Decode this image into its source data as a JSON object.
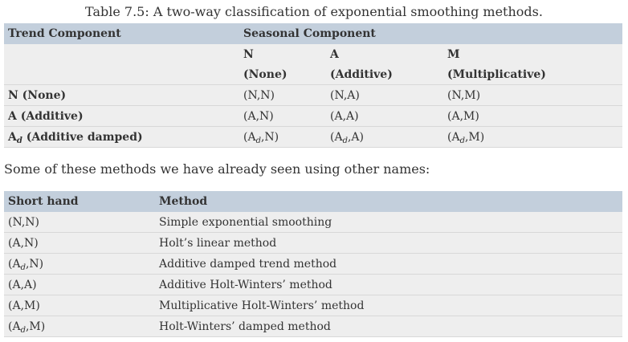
{
  "caption": "Table 7.5: A two-way classification of exponential smoothing methods.",
  "table1": {
    "header": {
      "trend": "Trend Component",
      "seasonal": "Seasonal Component"
    },
    "seasonal_codes": [
      "N",
      "A",
      "M"
    ],
    "seasonal_names": [
      "(None)",
      "(Additive)",
      "(Multiplicative)"
    ],
    "rows": [
      {
        "trend_main": "N (None)",
        "trend_sub": "",
        "trend_rest": "",
        "cells": [
          {
            "pre": "(N,N)",
            "sub": "",
            "post": ""
          },
          {
            "pre": "(N,A)",
            "sub": "",
            "post": ""
          },
          {
            "pre": "(N,M)",
            "sub": "",
            "post": ""
          }
        ]
      },
      {
        "trend_main": "A (Additive)",
        "trend_sub": "",
        "trend_rest": "",
        "cells": [
          {
            "pre": "(A,N)",
            "sub": "",
            "post": ""
          },
          {
            "pre": "(A,A)",
            "sub": "",
            "post": ""
          },
          {
            "pre": "(A,M)",
            "sub": "",
            "post": ""
          }
        ]
      },
      {
        "trend_main": "A",
        "trend_sub": "d",
        "trend_rest": " (Additive damped)",
        "cells": [
          {
            "pre": "(A",
            "sub": "d",
            "post": ",N)"
          },
          {
            "pre": "(A",
            "sub": "d",
            "post": ",A)"
          },
          {
            "pre": "(A",
            "sub": "d",
            "post": ",M)"
          }
        ]
      }
    ]
  },
  "paragraph": "Some of these methods we have already seen using other names:",
  "table2": {
    "header": {
      "short": "Short hand",
      "method": "Method"
    },
    "rows": [
      {
        "pre": "(N,N)",
        "sub": "",
        "post": "",
        "method": "Simple exponential smoothing"
      },
      {
        "pre": "(A,N)",
        "sub": "",
        "post": "",
        "method": "Holt’s linear method"
      },
      {
        "pre": "(A",
        "sub": "d",
        "post": ",N)",
        "method": "Additive damped trend method"
      },
      {
        "pre": "(A,A)",
        "sub": "",
        "post": "",
        "method": "Additive Holt-Winters’ method"
      },
      {
        "pre": "(A,M)",
        "sub": "",
        "post": "",
        "method": "Multiplicative Holt-Winters’ method"
      },
      {
        "pre": "(A",
        "sub": "d",
        "post": ",M)",
        "method": "Holt-Winters’ damped method"
      }
    ]
  }
}
